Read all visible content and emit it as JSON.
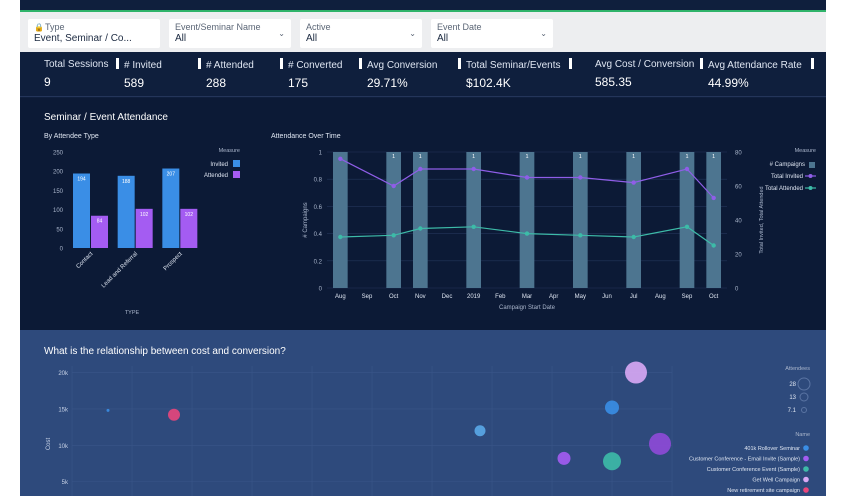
{
  "filters": [
    {
      "label": "Type",
      "value": "Event, Seminar / Co...",
      "locked": true
    },
    {
      "label": "Event/Seminar Name",
      "value": "All"
    },
    {
      "label": "Active",
      "value": "All"
    },
    {
      "label": "Event Date",
      "value": "All"
    }
  ],
  "kpis": [
    {
      "label": "Total Sessions",
      "value": "9"
    },
    {
      "label": "# Invited",
      "value": "589"
    },
    {
      "label": "# Attended",
      "value": "288"
    },
    {
      "label": "# Converted",
      "value": "175"
    },
    {
      "label": "Avg Conversion",
      "value": "29.71%"
    },
    {
      "label": "Total Seminar/Events",
      "value": "$102.4K"
    },
    {
      "label": "Avg Cost / Conversion",
      "value": "585.35"
    },
    {
      "label": "Avg Attendance Rate",
      "value": "44.99%"
    }
  ],
  "attendance_section": {
    "title": "Seminar / Event Attendance",
    "by_type_title": "By Attendee Type",
    "over_time_title": "Attendance Over Time"
  },
  "scatter_section": {
    "title": "What is the relationship between cost and conversion?"
  },
  "colors": {
    "invited_bar": "#3a8ee6",
    "attended_bar": "#a45cf2",
    "campaign_bar": "#4d7590",
    "invited_line": "#8f5ee8",
    "attended_line": "#3dbba8"
  },
  "chart_data": [
    {
      "type": "bar",
      "title": "By Attendee Type",
      "xlabel": "TYPE",
      "ylabel": "",
      "categories": [
        "Contact",
        "Lead and Referral",
        "Prospect"
      ],
      "series": [
        {
          "name": "Invited",
          "values": [
            194,
            188,
            207
          ]
        },
        {
          "name": "Attended",
          "values": [
            84,
            102,
            102
          ]
        }
      ],
      "ylim": [
        0,
        250
      ],
      "yticks": [
        0,
        50,
        100,
        150,
        200,
        250
      ],
      "legend_title": "Measure",
      "legend_position": "top-right",
      "grid": false
    },
    {
      "type": "bar+line",
      "title": "Attendance Over Time",
      "xlabel": "Campaign Start Date",
      "ylabel_left": "# Campaigns",
      "ylabel_right": "Total Invited, Total Attended",
      "x": [
        "Aug",
        "Sep",
        "Oct",
        "Nov",
        "Dec",
        "2019",
        "Feb",
        "Mar",
        "Apr",
        "May",
        "Jun",
        "Jul",
        "Aug",
        "Sep",
        "Oct"
      ],
      "series": [
        {
          "name": "# Campaigns",
          "kind": "bar",
          "axis": "left",
          "values": [
            1,
            0,
            1,
            1,
            0,
            1,
            0,
            1,
            0,
            1,
            0,
            1,
            0,
            1,
            1
          ],
          "labels": [
            "",
            "",
            "1",
            "1",
            "",
            "1",
            "",
            "1",
            "",
            "1",
            "",
            "1",
            "",
            "1",
            "1"
          ]
        },
        {
          "name": "Total Invited",
          "kind": "line",
          "axis": "right",
          "points": [
            [
              0,
              76
            ],
            [
              2,
              60
            ],
            [
              3,
              70
            ],
            [
              5,
              70
            ],
            [
              7,
              65
            ],
            [
              9,
              65
            ],
            [
              11,
              62
            ],
            [
              13,
              70
            ],
            [
              14,
              53
            ]
          ]
        },
        {
          "name": "Total Attended",
          "kind": "line",
          "axis": "right",
          "points": [
            [
              0,
              30
            ],
            [
              2,
              31
            ],
            [
              3,
              35
            ],
            [
              5,
              36
            ],
            [
              7,
              32
            ],
            [
              9,
              31
            ],
            [
              11,
              30
            ],
            [
              13,
              36
            ],
            [
              14,
              25
            ]
          ]
        }
      ],
      "ylim_left": [
        0,
        1
      ],
      "yticks_left": [
        0,
        0.2,
        0.4,
        0.6,
        0.8,
        1
      ],
      "ylim_right": [
        0,
        80
      ],
      "yticks_right": [
        0,
        20,
        40,
        60,
        80
      ],
      "legend_title": "Measure",
      "legend_position": "top-right",
      "grid": true
    },
    {
      "type": "scatter",
      "title": "What is the relationship between cost and conversion?",
      "ylabel": "Cost",
      "xlabel": "",
      "yticks": [
        "5k",
        "10k",
        "15k",
        "20k"
      ],
      "ylim": [
        0,
        22000
      ],
      "xlim": [
        0,
        100
      ],
      "size_legend_title": "Attendees",
      "size_legend": [
        "28",
        "13",
        "7.1"
      ],
      "color_legend_title": "Name",
      "legend_position": "right",
      "series": [
        {
          "name": "401k Rollover Seminar",
          "color": "#3a8ee6"
        },
        {
          "name": "Customer Conference - Email Invite (Sample)",
          "color": "#a45cf2"
        },
        {
          "name": "Customer Conference Event (Sample)",
          "color": "#3dbba8"
        },
        {
          "name": "Get Well Campaign",
          "color": "#d9a8f5"
        },
        {
          "name": "New retirement site campaign",
          "color": "#e8467c"
        }
      ],
      "points": [
        {
          "x": 6,
          "y": 14800,
          "size": 3,
          "color": "#3a8ee6"
        },
        {
          "x": 17,
          "y": 14200,
          "size": 12,
          "color": "#e8467c"
        },
        {
          "x": 68,
          "y": 12000,
          "size": 11,
          "color": "#5aa8e8"
        },
        {
          "x": 94,
          "y": 20000,
          "size": 22,
          "color": "#d9a8f5"
        },
        {
          "x": 90,
          "y": 15200,
          "size": 14,
          "color": "#3a8ee6"
        },
        {
          "x": 98,
          "y": 10200,
          "size": 22,
          "color": "#8f4ad8"
        },
        {
          "x": 82,
          "y": 8200,
          "size": 13,
          "color": "#a45cf2"
        },
        {
          "x": 90,
          "y": 7800,
          "size": 18,
          "color": "#3dbba8"
        }
      ]
    }
  ]
}
